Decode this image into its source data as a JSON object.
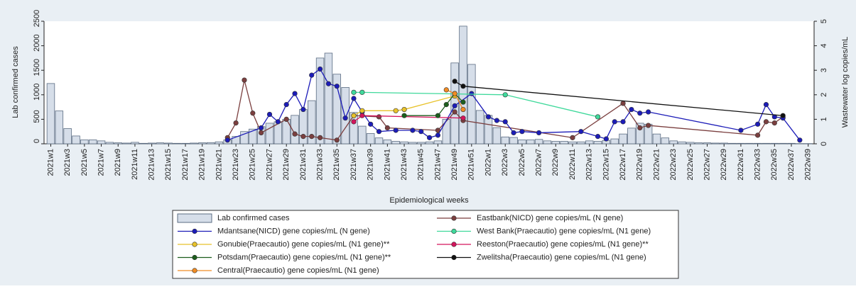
{
  "chart_data": {
    "type": "combo",
    "y_label": "Lab confirmed cases",
    "y2_label": "Wastewater log copies/mL",
    "x_label": "Epidemiological weeks",
    "xlim": [
      0.2,
      91.7
    ],
    "ylim": [
      0,
      2500
    ],
    "yticks": [
      0,
      500,
      1000,
      1500,
      2000,
      2500
    ],
    "y2lim": [
      0,
      5
    ],
    "y2ticks": [
      0,
      1,
      2,
      3,
      4,
      5
    ],
    "xticks": [
      {
        "value": 1,
        "label": "2021w1"
      },
      {
        "value": 3,
        "label": "2021w3"
      },
      {
        "value": 5,
        "label": "2021w5"
      },
      {
        "value": 7,
        "label": "2021w7"
      },
      {
        "value": 9,
        "label": "2021w9"
      },
      {
        "value": 11,
        "label": "2021w11"
      },
      {
        "value": 13,
        "label": "2021w13"
      },
      {
        "value": 15,
        "label": "2021w15"
      },
      {
        "value": 17,
        "label": "2021w17"
      },
      {
        "value": 19,
        "label": "2021w19"
      },
      {
        "value": 21,
        "label": "2021w21"
      },
      {
        "value": 23,
        "label": "2021w23"
      },
      {
        "value": 25,
        "label": "2021w25"
      },
      {
        "value": 27,
        "label": "2021w27"
      },
      {
        "value": 29,
        "label": "2021w29"
      },
      {
        "value": 31,
        "label": "2021w31"
      },
      {
        "value": 33,
        "label": "2021w33"
      },
      {
        "value": 35,
        "label": "2021w35"
      },
      {
        "value": 37,
        "label": "2021w37"
      },
      {
        "value": 39,
        "label": "2021w39"
      },
      {
        "value": 41,
        "label": "2021w41"
      },
      {
        "value": 43,
        "label": "2021w43"
      },
      {
        "value": 45,
        "label": "2021w45"
      },
      {
        "value": 47,
        "label": "2021w47"
      },
      {
        "value": 49,
        "label": "2021w49"
      },
      {
        "value": 51,
        "label": "2021w51"
      },
      {
        "value": 53,
        "label": "2022w1"
      },
      {
        "value": 55,
        "label": "2022w3"
      },
      {
        "value": 57,
        "label": "2022w5"
      },
      {
        "value": 59,
        "label": "2022w7"
      },
      {
        "value": 61,
        "label": "2022w9"
      },
      {
        "value": 63,
        "label": "2022w11"
      },
      {
        "value": 65,
        "label": "2022w13"
      },
      {
        "value": 67,
        "label": "2022w15"
      },
      {
        "value": 69,
        "label": "2022w17"
      },
      {
        "value": 71,
        "label": "2022w19"
      },
      {
        "value": 73,
        "label": "2022w21"
      },
      {
        "value": 75,
        "label": "2022w23"
      },
      {
        "value": 77,
        "label": "2022w25"
      },
      {
        "value": 79,
        "label": "2022w27"
      },
      {
        "value": 81,
        "label": "2022w29"
      },
      {
        "value": 83,
        "label": "2022w31"
      },
      {
        "value": 85,
        "label": "2022w33"
      },
      {
        "value": 87,
        "label": "2022w35"
      },
      {
        "value": 89,
        "label": "2022w37"
      },
      {
        "value": 91,
        "label": "2022w39"
      }
    ],
    "series": [
      {
        "name": "Lab confirmed cases",
        "type": "bar",
        "color": "#d6dee9",
        "x": [
          1,
          2,
          3,
          4,
          5,
          6,
          7,
          8,
          9,
          10,
          11,
          12,
          13,
          14,
          15,
          16,
          17,
          18,
          19,
          20,
          21,
          22,
          23,
          24,
          25,
          26,
          27,
          28,
          29,
          30,
          31,
          32,
          33,
          34,
          35,
          36,
          37,
          38,
          39,
          40,
          41,
          42,
          43,
          44,
          45,
          46,
          47,
          48,
          49,
          50,
          51,
          52,
          53,
          54,
          55,
          56,
          57,
          58,
          59,
          60,
          61,
          62,
          63,
          64,
          65,
          66,
          67,
          68,
          69,
          70,
          71,
          72,
          73,
          74,
          75,
          76,
          77,
          78,
          79,
          80,
          81,
          82,
          83,
          84,
          85,
          86,
          87,
          88,
          89,
          90,
          91
        ],
        "values": [
          1230,
          670,
          310,
          160,
          80,
          80,
          60,
          30,
          20,
          15,
          30,
          10,
          15,
          20,
          15,
          10,
          10,
          15,
          20,
          25,
          40,
          80,
          150,
          250,
          300,
          350,
          420,
          450,
          500,
          580,
          700,
          880,
          1750,
          1850,
          1420,
          1150,
          640,
          360,
          210,
          120,
          80,
          50,
          40,
          30,
          30,
          40,
          60,
          500,
          1650,
          2400,
          1620,
          680,
          580,
          330,
          140,
          130,
          80,
          80,
          90,
          60,
          50,
          50,
          40,
          40,
          60,
          50,
          70,
          100,
          200,
          320,
          420,
          400,
          200,
          120,
          60,
          40,
          30,
          20,
          20,
          15,
          15,
          10,
          10,
          10,
          10,
          10,
          10,
          10,
          10,
          5,
          5
        ]
      },
      {
        "name": "Eastbank(NICD) gene copies/mL (N gene)",
        "type": "line",
        "axis": "y2",
        "color": "#7b3f3f",
        "x": [
          22,
          23,
          24,
          25,
          26,
          29,
          30,
          31,
          32,
          33,
          35,
          37,
          40,
          41,
          47,
          49,
          50,
          63,
          69,
          71,
          72,
          85,
          86,
          87,
          88
        ],
        "values": [
          0.25,
          0.85,
          2.6,
          1.25,
          0.45,
          1.0,
          0.4,
          0.3,
          0.3,
          0.25,
          0.15,
          1.15,
          1.1,
          0.65,
          0.55,
          1.3,
          0.95,
          0.25,
          1.65,
          0.65,
          0.75,
          0.35,
          0.9,
          0.85,
          1.1
        ]
      },
      {
        "name": "Mdantsane(NICD) gene copies/mL (N gene)",
        "type": "line",
        "axis": "y2",
        "color": "#1c1cb8",
        "x": [
          22,
          26,
          27,
          28,
          29,
          30,
          31,
          32,
          33,
          34,
          35,
          36,
          37,
          38,
          39,
          40,
          42,
          44,
          45,
          46,
          47,
          49,
          51,
          53,
          54,
          55,
          56,
          57,
          59,
          64,
          66,
          67,
          68,
          69,
          70,
          71,
          72,
          83,
          85,
          86,
          87,
          88,
          90
        ],
        "values": [
          0.15,
          0.65,
          1.2,
          0.9,
          1.6,
          2.05,
          1.4,
          2.8,
          3.05,
          2.45,
          2.35,
          1.05,
          1.85,
          1.3,
          0.8,
          0.5,
          0.55,
          0.55,
          0.5,
          0.25,
          0.35,
          1.55,
          2.05,
          1.1,
          0.95,
          0.9,
          0.45,
          0.5,
          0.45,
          0.5,
          0.3,
          0.2,
          0.9,
          0.9,
          1.4,
          1.25,
          1.3,
          0.55,
          0.8,
          1.6,
          1.1,
          1.05,
          0.15
        ]
      },
      {
        "name": " West Bank(Praecautio) gene copies/mL (N1 gene)",
        "type": "line",
        "axis": "y2",
        "color": "#3fd99b",
        "x": [
          37,
          38,
          55,
          66
        ],
        "values": [
          2.1,
          2.1,
          2.0,
          1.1
        ]
      },
      {
        "name": "Gonubie(Praecautio) gene copies/mL (N1 gene)**",
        "type": "line",
        "axis": "y2",
        "color": "#e8c22a",
        "x": [
          37,
          38,
          42,
          43,
          49
        ],
        "values": [
          1.15,
          1.35,
          1.35,
          1.4,
          1.95
        ]
      },
      {
        "name": "Reeston(Praecautio) gene copies/mL (N1 gene)**",
        "type": "line",
        "axis": "y2",
        "color": "#d3145c",
        "x": [
          37,
          38,
          50
        ],
        "values": [
          0.9,
          1.15,
          1.05
        ]
      },
      {
        "name": "Potsdam(Praecautio) gene copies/mL (N1 gene)**",
        "type": "line",
        "axis": "y2",
        "color": "#1d5e1d",
        "x": [
          43,
          47,
          48,
          49,
          50
        ],
        "values": [
          1.15,
          1.15,
          1.6,
          2.05,
          1.7
        ]
      },
      {
        "name": "Zwelitsha(Praecautio) gene copies/mL (N1 gene)",
        "type": "line",
        "axis": "y2",
        "color": "#111111",
        "x": [
          49,
          50,
          88
        ],
        "values": [
          2.55,
          2.35,
          1.15
        ]
      },
      {
        "name": "Central(Praecautio) gene copies/mL (N1 gene)",
        "type": "line",
        "axis": "y2",
        "color": "#f08c24",
        "x": [
          48,
          49,
          50
        ],
        "values": [
          2.2,
          2.05,
          1.4
        ]
      }
    ]
  }
}
